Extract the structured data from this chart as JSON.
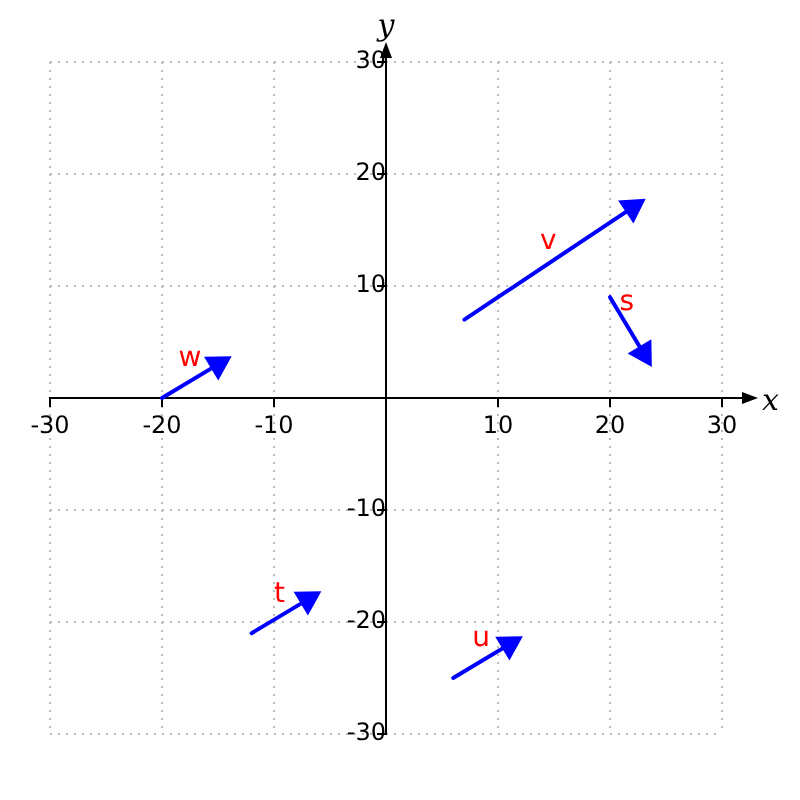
{
  "chart_data": {
    "type": "line",
    "xlabel": "x",
    "ylabel": "y",
    "xlim": [
      -30,
      30
    ],
    "ylim": [
      -30,
      30
    ],
    "xticks": [
      -30,
      -20,
      -10,
      {
        "value": 0,
        "label": null
      },
      10,
      20,
      30
    ],
    "yticks": [
      -30,
      -20,
      -10,
      {
        "value": 0,
        "label": null
      },
      10,
      20,
      30
    ],
    "grid": true,
    "legend": false,
    "marker": "triangle",
    "line_style": "solid",
    "series": [
      {
        "name": "v",
        "color": "#0000ff",
        "x": [
          7,
          22
        ],
        "values": [
          7,
          17
        ]
      },
      {
        "name": "s",
        "color": "#0000ff",
        "x": [
          20,
          23
        ],
        "values": [
          9,
          4
        ]
      },
      {
        "name": "w",
        "color": "#0000ff",
        "x": [
          -20,
          -15
        ],
        "values": [
          0,
          3
        ]
      },
      {
        "name": "t",
        "color": "#0000ff",
        "x": [
          -12,
          -7
        ],
        "values": [
          -21,
          -18
        ]
      },
      {
        "name": "u",
        "color": "#0000ff",
        "x": [
          6,
          11
        ],
        "values": [
          -25,
          -22
        ]
      }
    ]
  }
}
